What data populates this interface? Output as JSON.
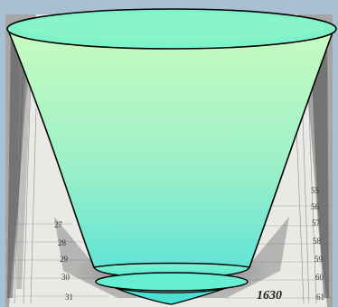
{
  "figure": {
    "label": "1630",
    "left_scale_numbers": [
      "27",
      "28",
      "29",
      "30",
      "31"
    ],
    "right_scale_numbers": [
      "55",
      "56",
      "57",
      "58",
      "59",
      "60",
      "61"
    ],
    "colors": {
      "frame": "#a9bfd3",
      "paper": "#e9e9e6",
      "cup_top": "#c6fcc0",
      "cup_bottom": "#5fe3d7",
      "rim": "#6ef0d2",
      "outline": "#000000"
    }
  }
}
